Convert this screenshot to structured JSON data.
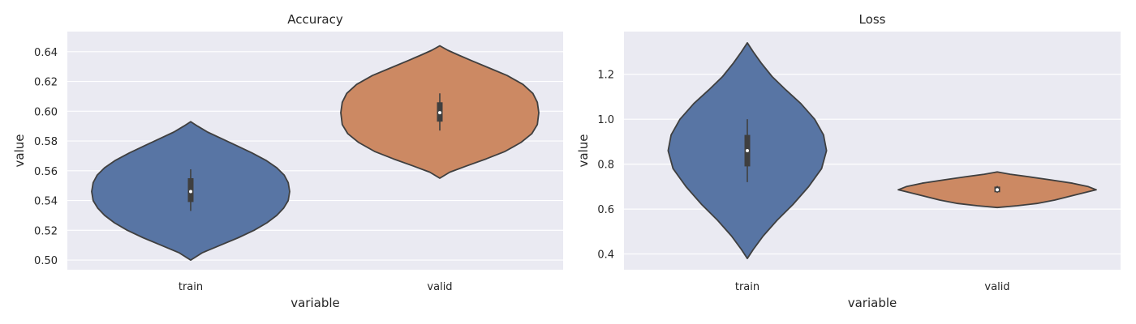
{
  "chart_data": [
    {
      "type": "violin",
      "title": "Accuracy",
      "xlabel": "variable",
      "ylabel": "value",
      "categories": [
        "train",
        "valid"
      ],
      "colors": [
        "#5875a4",
        "#cc8963"
      ],
      "ylim": [
        0.4935,
        0.6535
      ],
      "yticks": [
        0.5,
        0.52,
        0.54,
        0.56,
        0.58,
        0.6,
        0.62,
        0.64
      ],
      "ytick_labels": [
        "0.50",
        "0.52",
        "0.54",
        "0.56",
        "0.58",
        "0.60",
        "0.62",
        "0.64"
      ],
      "grid": true,
      "violins": [
        {
          "category": "train",
          "min": 0.5,
          "max": 0.593,
          "q1": 0.539,
          "median": 0.546,
          "q3": 0.555,
          "whisker_low": 0.533,
          "whisker_high": 0.561,
          "density": [
            [
              0.5,
              0.0
            ],
            [
              0.505,
              0.12
            ],
            [
              0.51,
              0.3
            ],
            [
              0.515,
              0.48
            ],
            [
              0.52,
              0.64
            ],
            [
              0.525,
              0.77
            ],
            [
              0.53,
              0.87
            ],
            [
              0.535,
              0.94
            ],
            [
              0.54,
              0.985
            ],
            [
              0.546,
              1.0
            ],
            [
              0.552,
              0.985
            ],
            [
              0.557,
              0.945
            ],
            [
              0.562,
              0.87
            ],
            [
              0.567,
              0.76
            ],
            [
              0.572,
              0.62
            ],
            [
              0.577,
              0.46
            ],
            [
              0.582,
              0.3
            ],
            [
              0.586,
              0.17
            ],
            [
              0.59,
              0.07
            ],
            [
              0.593,
              0.0
            ]
          ]
        },
        {
          "category": "valid",
          "min": 0.555,
          "max": 0.644,
          "q1": 0.593,
          "median": 0.599,
          "q3": 0.606,
          "whisker_low": 0.587,
          "whisker_high": 0.612,
          "density": [
            [
              0.555,
              0.0
            ],
            [
              0.559,
              0.1
            ],
            [
              0.563,
              0.26
            ],
            [
              0.568,
              0.47
            ],
            [
              0.573,
              0.66
            ],
            [
              0.579,
              0.82
            ],
            [
              0.585,
              0.93
            ],
            [
              0.591,
              0.985
            ],
            [
              0.599,
              1.0
            ],
            [
              0.606,
              0.985
            ],
            [
              0.612,
              0.94
            ],
            [
              0.618,
              0.84
            ],
            [
              0.624,
              0.68
            ],
            [
              0.629,
              0.5
            ],
            [
              0.634,
              0.32
            ],
            [
              0.638,
              0.18
            ],
            [
              0.641,
              0.08
            ],
            [
              0.644,
              0.0
            ]
          ]
        }
      ]
    },
    {
      "type": "violin",
      "title": "Loss",
      "xlabel": "variable",
      "ylabel": "value",
      "categories": [
        "train",
        "valid"
      ],
      "colors": [
        "#5875a4",
        "#cc8963"
      ],
      "ylim": [
        0.33,
        1.39
      ],
      "yticks": [
        0.4,
        0.6,
        0.8,
        1.0,
        1.2
      ],
      "ytick_labels": [
        "0.4",
        "0.6",
        "0.8",
        "1.0",
        "1.2"
      ],
      "grid": true,
      "violins": [
        {
          "category": "train",
          "min": 0.38,
          "max": 1.34,
          "q1": 0.79,
          "median": 0.86,
          "q3": 0.93,
          "whisker_low": 0.72,
          "whisker_high": 1.0,
          "density": [
            [
              0.38,
              0.0
            ],
            [
              0.42,
              0.06
            ],
            [
              0.48,
              0.16
            ],
            [
              0.55,
              0.3
            ],
            [
              0.62,
              0.46
            ],
            [
              0.7,
              0.62
            ],
            [
              0.78,
              0.75
            ],
            [
              0.86,
              0.8
            ],
            [
              0.93,
              0.77
            ],
            [
              1.0,
              0.68
            ],
            [
              1.07,
              0.54
            ],
            [
              1.13,
              0.39
            ],
            [
              1.19,
              0.25
            ],
            [
              1.25,
              0.14
            ],
            [
              1.3,
              0.06
            ],
            [
              1.34,
              0.0
            ]
          ]
        },
        {
          "category": "valid",
          "min": 0.607,
          "max": 0.765,
          "q1": 0.675,
          "median": 0.686,
          "q3": 0.7,
          "whisker_low": 0.672,
          "whisker_high": 0.703,
          "density": [
            [
              0.607,
              0.0
            ],
            [
              0.615,
              0.2
            ],
            [
              0.625,
              0.4
            ],
            [
              0.64,
              0.58
            ],
            [
              0.66,
              0.76
            ],
            [
              0.675,
              0.9
            ],
            [
              0.686,
              1.0
            ],
            [
              0.7,
              0.92
            ],
            [
              0.715,
              0.76
            ],
            [
              0.73,
              0.54
            ],
            [
              0.745,
              0.3
            ],
            [
              0.755,
              0.13
            ],
            [
              0.765,
              0.0
            ]
          ]
        }
      ]
    }
  ]
}
